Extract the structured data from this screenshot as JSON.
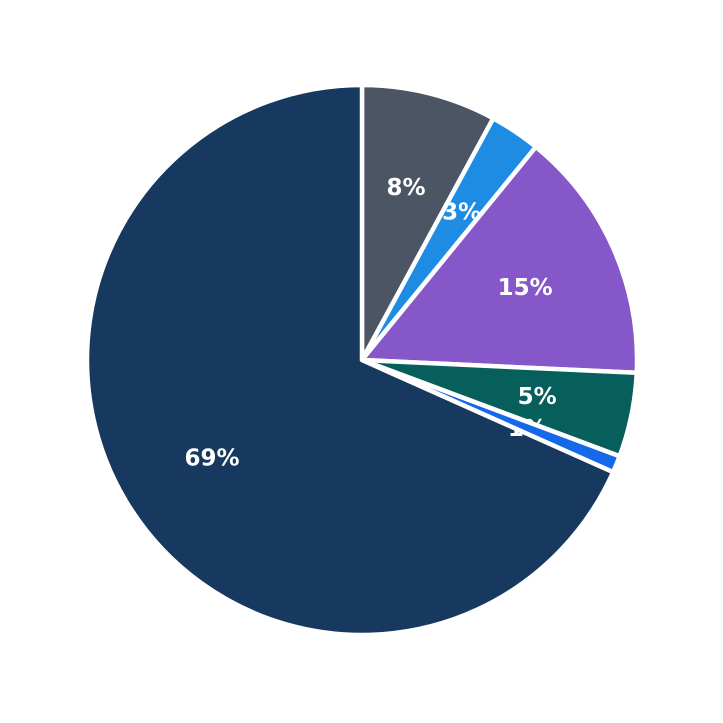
{
  "chart_data": {
    "type": "pie",
    "slices": [
      {
        "label": "8%",
        "value": 8,
        "color": "#4B5563"
      },
      {
        "label": "3%",
        "value": 3,
        "color": "#1E8CE2"
      },
      {
        "label": "15%",
        "value": 15,
        "color": "#8557C9"
      },
      {
        "label": "5%",
        "value": 5,
        "color": "#065F5A"
      },
      {
        "label": "1%",
        "value": 1,
        "color": "#1568E8",
        "label_under_edges": true
      },
      {
        "label": "69%",
        "value": 69,
        "color": "#17395F"
      }
    ],
    "title": "",
    "legend": "none",
    "start_at": "top",
    "direction": "clockwise",
    "label_color": "#ffffff",
    "label_distance": 0.65,
    "edge_color": "#ffffff",
    "edge_width": 4.5,
    "background": "#ffffff"
  }
}
